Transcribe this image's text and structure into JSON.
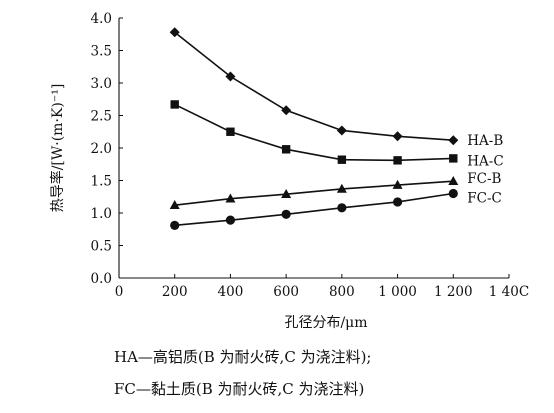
{
  "chart_data": {
    "type": "line",
    "xlabel": "孔径分布/μm",
    "ylabel": "热导率/[W·(m·K)⁻¹]",
    "xlim": [
      0,
      1400
    ],
    "ylim": [
      0,
      4.0
    ],
    "x_ticks": [
      0,
      200,
      400,
      600,
      800,
      1000,
      1200,
      1400
    ],
    "x_tick_labels": [
      "0",
      "200",
      "400",
      "600",
      "800",
      "1 000",
      "1 200",
      "1 40C"
    ],
    "y_ticks": [
      0,
      0.5,
      1.0,
      1.5,
      2.0,
      2.5,
      3.0,
      3.5,
      4.0
    ],
    "y_tick_labels": [
      "0.0",
      "0.5",
      "1.0",
      "1.5",
      "2.0",
      "2.5",
      "3.0",
      "3.5",
      "4.0"
    ],
    "grid": false,
    "x": [
      200,
      400,
      600,
      800,
      1000,
      1200
    ],
    "series": [
      {
        "name": "HA-B",
        "marker": "diamond",
        "values": [
          3.78,
          3.1,
          2.58,
          2.27,
          2.18,
          2.12
        ]
      },
      {
        "name": "HA-C",
        "marker": "square",
        "values": [
          2.67,
          2.25,
          1.98,
          1.82,
          1.81,
          1.84
        ]
      },
      {
        "name": "FC-B",
        "marker": "triangle",
        "values": [
          1.12,
          1.22,
          1.29,
          1.37,
          1.43,
          1.49
        ]
      },
      {
        "name": "FC-C",
        "marker": "circle",
        "values": [
          0.81,
          0.89,
          0.98,
          1.08,
          1.17,
          1.3
        ]
      }
    ]
  },
  "caption": {
    "line1": "HA—高铝质(B 为耐火砖,C 为浇注料);",
    "line2": "FC—黏土质(B 为耐火砖,C 为浇注料)"
  }
}
